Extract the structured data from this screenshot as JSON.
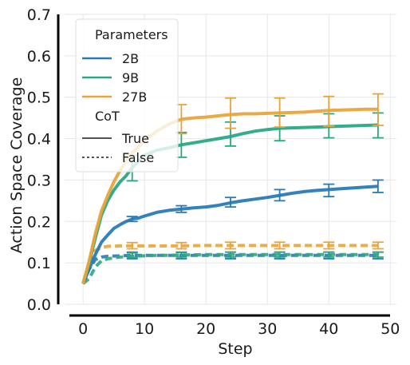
{
  "chart_data": {
    "type": "line",
    "xlabel": "Step",
    "ylabel": "Action Space Coverage",
    "xlim": [
      -3,
      51
    ],
    "ylim": [
      0,
      0.7
    ],
    "xticks": [
      0,
      10,
      20,
      30,
      40,
      50
    ],
    "yticks": [
      0.0,
      0.1,
      0.2,
      0.3,
      0.4,
      0.5,
      0.6,
      0.7
    ],
    "xtick_labels": [
      "0",
      "10",
      "20",
      "30",
      "40",
      "50"
    ],
    "ytick_labels": [
      "0.0",
      "0.1",
      "0.2",
      "0.3",
      "0.4",
      "0.5",
      "0.6",
      "0.7"
    ],
    "grid": true,
    "legend": {
      "placement": "top-left",
      "parameters_title": "Parameters",
      "cot_title": "CoT",
      "entries": [
        {
          "label": "2B",
          "color": "#2a7ab8"
        },
        {
          "label": "9B",
          "color": "#2aa884"
        },
        {
          "label": "27B",
          "color": "#e8a43a"
        }
      ],
      "style_entries": [
        {
          "label": "True",
          "dash": "solid"
        },
        {
          "label": "False",
          "dash": "dashed"
        }
      ]
    },
    "series": [
      {
        "model": "2B",
        "cot": "True",
        "color": "#2a7ab8",
        "x": [
          0,
          1,
          2,
          3,
          4,
          5,
          6,
          7,
          8,
          9,
          10,
          12,
          14,
          16,
          18,
          20,
          22,
          24,
          26,
          28,
          30,
          32,
          34,
          36,
          38,
          40,
          42,
          44,
          46,
          48
        ],
        "y": [
          0.05,
          0.085,
          0.12,
          0.15,
          0.167,
          0.183,
          0.192,
          0.2,
          0.206,
          0.208,
          0.213,
          0.222,
          0.227,
          0.23,
          0.233,
          0.235,
          0.239,
          0.245,
          0.25,
          0.254,
          0.258,
          0.263,
          0.268,
          0.272,
          0.275,
          0.277,
          0.279,
          0.281,
          0.283,
          0.285
        ],
        "errorbars": [
          {
            "x": 8,
            "lo": 0.2,
            "hi": 0.212
          },
          {
            "x": 16,
            "lo": 0.222,
            "hi": 0.238
          },
          {
            "x": 24,
            "lo": 0.235,
            "hi": 0.258
          },
          {
            "x": 32,
            "lo": 0.25,
            "hi": 0.277
          },
          {
            "x": 40,
            "lo": 0.26,
            "hi": 0.29
          },
          {
            "x": 48,
            "lo": 0.27,
            "hi": 0.3
          }
        ]
      },
      {
        "model": "9B",
        "cot": "True",
        "color": "#2aa884",
        "x": [
          0,
          1,
          2,
          3,
          4,
          5,
          6,
          7,
          8,
          9,
          10,
          12,
          14,
          16,
          18,
          20,
          22,
          24,
          26,
          28,
          30,
          32,
          34,
          36,
          38,
          40,
          42,
          44,
          46,
          48
        ],
        "y": [
          0.05,
          0.1,
          0.16,
          0.215,
          0.25,
          0.275,
          0.295,
          0.31,
          0.33,
          0.345,
          0.36,
          0.372,
          0.378,
          0.385,
          0.39,
          0.395,
          0.4,
          0.405,
          0.412,
          0.418,
          0.422,
          0.425,
          0.426,
          0.427,
          0.428,
          0.429,
          0.43,
          0.431,
          0.432,
          0.433
        ],
        "errorbars": [
          {
            "x": 8,
            "lo": 0.298,
            "hi": 0.36
          },
          {
            "x": 16,
            "lo": 0.355,
            "hi": 0.415
          },
          {
            "x": 24,
            "lo": 0.382,
            "hi": 0.44
          },
          {
            "x": 32,
            "lo": 0.395,
            "hi": 0.455
          },
          {
            "x": 40,
            "lo": 0.402,
            "hi": 0.46
          },
          {
            "x": 48,
            "lo": 0.402,
            "hi": 0.462
          }
        ]
      },
      {
        "model": "27B",
        "cot": "True",
        "color": "#e8a43a",
        "x": [
          0,
          1,
          2,
          3,
          4,
          5,
          6,
          7,
          8,
          9,
          10,
          12,
          14,
          16,
          18,
          20,
          22,
          24,
          26,
          28,
          30,
          32,
          34,
          36,
          38,
          40,
          42,
          44,
          46,
          48
        ],
        "y": [
          0.05,
          0.105,
          0.17,
          0.225,
          0.262,
          0.295,
          0.322,
          0.345,
          0.365,
          0.38,
          0.395,
          0.418,
          0.435,
          0.447,
          0.45,
          0.452,
          0.455,
          0.458,
          0.46,
          0.46,
          0.461,
          0.462,
          0.463,
          0.464,
          0.466,
          0.468,
          0.469,
          0.47,
          0.471,
          0.471
        ],
        "errorbars": [
          {
            "x": 16,
            "lo": 0.412,
            "hi": 0.482
          },
          {
            "x": 24,
            "lo": 0.425,
            "hi": 0.498
          },
          {
            "x": 32,
            "lo": 0.428,
            "hi": 0.498
          },
          {
            "x": 40,
            "lo": 0.43,
            "hi": 0.502
          },
          {
            "x": 48,
            "lo": 0.432,
            "hi": 0.508
          }
        ]
      },
      {
        "model": "2B",
        "cot": "False",
        "color": "#2a7ab8",
        "x": [
          0,
          1,
          2,
          3,
          4,
          6,
          8,
          12,
          16,
          20,
          24,
          28,
          32,
          36,
          40,
          44,
          48
        ],
        "y": [
          0.05,
          0.085,
          0.108,
          0.114,
          0.116,
          0.117,
          0.118,
          0.118,
          0.118,
          0.118,
          0.118,
          0.118,
          0.118,
          0.118,
          0.118,
          0.118,
          0.118
        ],
        "errorbars": [
          {
            "x": 8,
            "lo": 0.11,
            "hi": 0.126
          },
          {
            "x": 16,
            "lo": 0.11,
            "hi": 0.126
          },
          {
            "x": 24,
            "lo": 0.11,
            "hi": 0.126
          },
          {
            "x": 32,
            "lo": 0.11,
            "hi": 0.126
          },
          {
            "x": 40,
            "lo": 0.11,
            "hi": 0.126
          },
          {
            "x": 48,
            "lo": 0.11,
            "hi": 0.126
          }
        ]
      },
      {
        "model": "9B",
        "cot": "False",
        "color": "#2aa884",
        "x": [
          0,
          1,
          2,
          3,
          4,
          6,
          8,
          12,
          16,
          20,
          24,
          28,
          32,
          36,
          40,
          44,
          48
        ],
        "y": [
          0.05,
          0.062,
          0.09,
          0.105,
          0.11,
          0.114,
          0.116,
          0.118,
          0.119,
          0.12,
          0.12,
          0.12,
          0.12,
          0.12,
          0.12,
          0.12,
          0.12
        ],
        "errorbars": [
          {
            "x": 8,
            "lo": 0.113,
            "hi": 0.124
          },
          {
            "x": 16,
            "lo": 0.114,
            "hi": 0.125
          },
          {
            "x": 24,
            "lo": 0.114,
            "hi": 0.126
          },
          {
            "x": 32,
            "lo": 0.114,
            "hi": 0.126
          },
          {
            "x": 40,
            "lo": 0.114,
            "hi": 0.126
          },
          {
            "x": 48,
            "lo": 0.114,
            "hi": 0.126
          }
        ]
      },
      {
        "model": "27B",
        "cot": "False",
        "color": "#e8a43a",
        "x": [
          0,
          1,
          2,
          3,
          4,
          6,
          8,
          12,
          16,
          20,
          24,
          28,
          32,
          36,
          40,
          44,
          48
        ],
        "y": [
          0.05,
          0.1,
          0.13,
          0.137,
          0.14,
          0.141,
          0.141,
          0.141,
          0.141,
          0.142,
          0.142,
          0.142,
          0.142,
          0.142,
          0.142,
          0.142,
          0.142
        ],
        "errorbars": [
          {
            "x": 8,
            "lo": 0.134,
            "hi": 0.149
          },
          {
            "x": 16,
            "lo": 0.134,
            "hi": 0.149
          },
          {
            "x": 24,
            "lo": 0.134,
            "hi": 0.15
          },
          {
            "x": 32,
            "lo": 0.134,
            "hi": 0.15
          },
          {
            "x": 40,
            "lo": 0.134,
            "hi": 0.15
          },
          {
            "x": 48,
            "lo": 0.134,
            "hi": 0.15
          }
        ]
      }
    ]
  }
}
